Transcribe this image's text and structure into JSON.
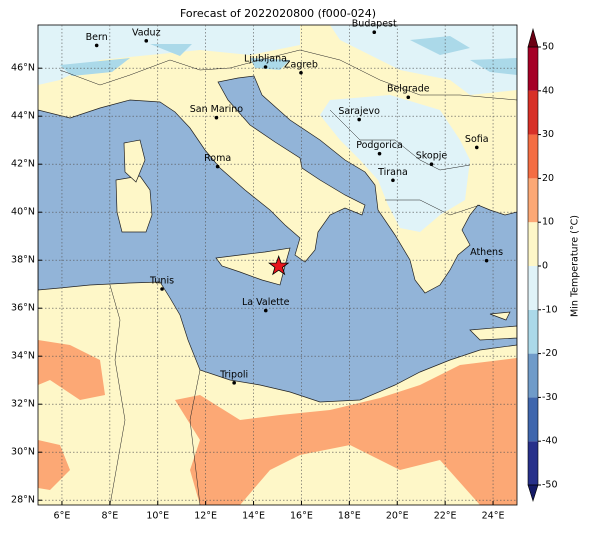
{
  "title": "Forecast of 2022020800 (f000-024)",
  "map": {
    "xlim": [
      5,
      25
    ],
    "ylim": [
      27.8,
      47.8
    ],
    "xticks": [
      {
        "value": 6,
        "label": "6°E"
      },
      {
        "value": 8,
        "label": "8°E"
      },
      {
        "value": 10,
        "label": "10°E"
      },
      {
        "value": 12,
        "label": "12°E"
      },
      {
        "value": 14,
        "label": "14°E"
      },
      {
        "value": 16,
        "label": "16°E"
      },
      {
        "value": 18,
        "label": "18°E"
      },
      {
        "value": 20,
        "label": "20°E"
      },
      {
        "value": 22,
        "label": "22°E"
      },
      {
        "value": 24,
        "label": "24°E"
      }
    ],
    "yticks": [
      {
        "value": 28,
        "label": "28°N"
      },
      {
        "value": 30,
        "label": "30°N"
      },
      {
        "value": 32,
        "label": "32°N"
      },
      {
        "value": 34,
        "label": "34°N"
      },
      {
        "value": 36,
        "label": "36°N"
      },
      {
        "value": 38,
        "label": "38°N"
      },
      {
        "value": 40,
        "label": "40°N"
      },
      {
        "value": 42,
        "label": "42°N"
      },
      {
        "value": 44,
        "label": "44°N"
      },
      {
        "value": 46,
        "label": "46°N"
      }
    ],
    "grid": true
  },
  "cities": [
    {
      "name": "Bern",
      "lon": 7.45,
      "lat": 46.95
    },
    {
      "name": "Vaduz",
      "lon": 9.52,
      "lat": 47.14
    },
    {
      "name": "Budapest",
      "lon": 19.04,
      "lat": 47.5
    },
    {
      "name": "Ljubljana",
      "lon": 14.5,
      "lat": 46.05
    },
    {
      "name": "Zagreb",
      "lon": 15.98,
      "lat": 45.81
    },
    {
      "name": "Belgrade",
      "lon": 20.46,
      "lat": 44.79
    },
    {
      "name": "San Marino",
      "lon": 12.45,
      "lat": 43.94
    },
    {
      "name": "Sarajevo",
      "lon": 18.41,
      "lat": 43.86
    },
    {
      "name": "Sofia",
      "lon": 23.32,
      "lat": 42.7
    },
    {
      "name": "Podgorica",
      "lon": 19.26,
      "lat": 42.44
    },
    {
      "name": "Skopje",
      "lon": 21.43,
      "lat": 42.0
    },
    {
      "name": "Roma",
      "lon": 12.5,
      "lat": 41.9
    },
    {
      "name": "Tirana",
      "lon": 19.82,
      "lat": 41.33
    },
    {
      "name": "Athens",
      "lon": 23.73,
      "lat": 37.98
    },
    {
      "name": "Tunis",
      "lon": 10.18,
      "lat": 36.8
    },
    {
      "name": "La Valette",
      "lon": 14.51,
      "lat": 35.9
    },
    {
      "name": "Tripoli",
      "lon": 13.19,
      "lat": 32.89
    }
  ],
  "marker": {
    "lon": 15.05,
    "lat": 37.75,
    "color": "#e8141c"
  },
  "colorbar": {
    "label": "Min Temperature (°C)",
    "lim": [
      -50,
      50
    ],
    "ticks": [
      -50,
      -40,
      -30,
      -20,
      -10,
      0,
      10,
      20,
      30,
      40,
      50
    ],
    "colors": [
      "#27308a",
      "#3f66ad",
      "#6f9bc9",
      "#abd9e9",
      "#e0f3f8",
      "#fef7c8",
      "#fca875",
      "#f46d43",
      "#d73027",
      "#a50026"
    ],
    "extend_colors": [
      "#141a66",
      "#6b0013"
    ]
  }
}
